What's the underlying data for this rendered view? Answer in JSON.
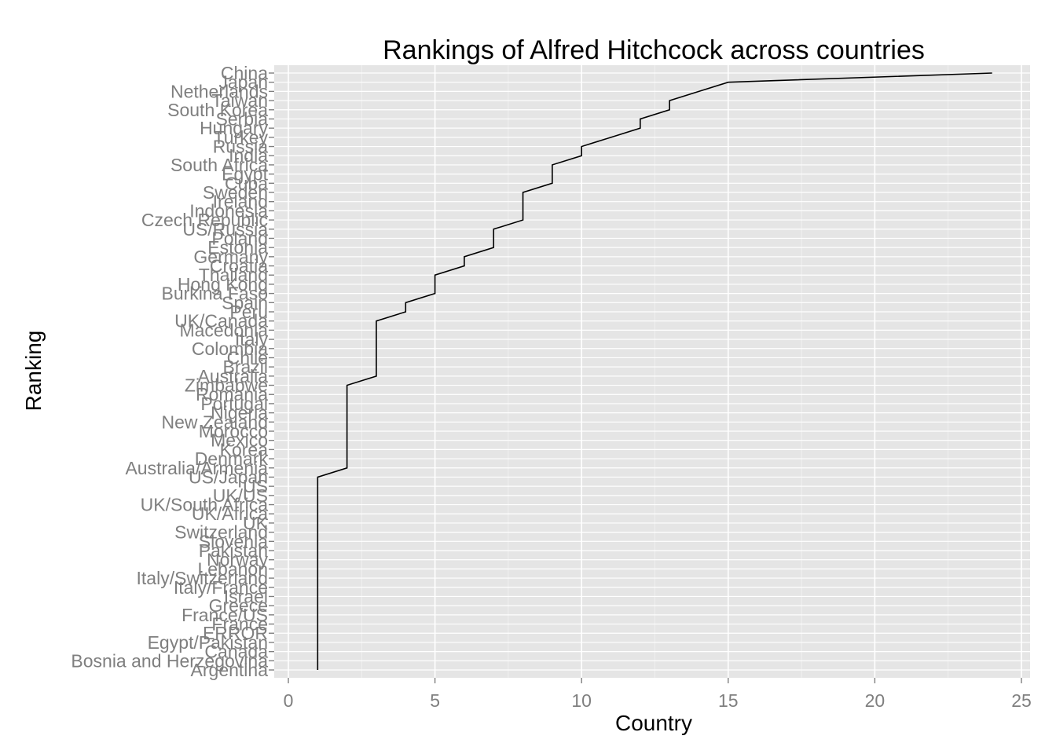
{
  "chart_data": {
    "type": "line",
    "title": "Rankings of Alfred Hitchcock across countries",
    "xlabel": "Country",
    "ylabel": "Ranking",
    "xlim": [
      0,
      25
    ],
    "x_ticks": [
      0,
      5,
      10,
      15,
      20,
      25
    ],
    "grid": true,
    "background": "#e5e5e5",
    "line_color": "#000000",
    "categories": [
      "Argentina",
      "Bosnia and Herzegovina",
      "Canada",
      "Egypt/Pakistan",
      "ERROR",
      "France",
      "France/US",
      "Greece",
      "Israel",
      "Italy/France",
      "Italy/Switzerland",
      "Lebanon",
      "Norway",
      "Pakistan",
      "Slovenia",
      "Switzerland",
      "UK",
      "UK/Africa",
      "UK/South Africa",
      "UK/US",
      "US",
      "US/Japan",
      "Australia/Armenia",
      "Denmark",
      "Korea",
      "Mexico",
      "Morocco",
      "New Zealand",
      "Nigeria",
      "Portugal",
      "Romania",
      "Zimbabwe",
      "Australia",
      "Brazil",
      "Chile",
      "Colombia",
      "Italy",
      "Macedonia",
      "UK/Canada",
      "Peru",
      "Spain",
      "Burkina Faso",
      "Hong Kong",
      "Thailand",
      "Croatia",
      "Germany",
      "Estonia",
      "Poland",
      "US/Russia",
      "Czech Republic",
      "Indonesia",
      "Ireland",
      "Sweden",
      "Cuba",
      "Egypt",
      "South Africa",
      "India",
      "Russia",
      "Turkey",
      "Hungary",
      "Serbia",
      "South Korea",
      "Taiwan",
      "Netherlands",
      "Japan",
      "China"
    ],
    "values": [
      1,
      1,
      1,
      1,
      1,
      1,
      1,
      1,
      1,
      1,
      1,
      1,
      1,
      1,
      1,
      1,
      1,
      1,
      1,
      1,
      1,
      1,
      2,
      2,
      2,
      2,
      2,
      2,
      2,
      2,
      2,
      2,
      3,
      3,
      3,
      3,
      3,
      3,
      3,
      4,
      4,
      5,
      5,
      5,
      6,
      6,
      7,
      7,
      7,
      8,
      8,
      8,
      8,
      9,
      9,
      9,
      10,
      10,
      11,
      12,
      12,
      13,
      13,
      14,
      15,
      24
    ]
  }
}
